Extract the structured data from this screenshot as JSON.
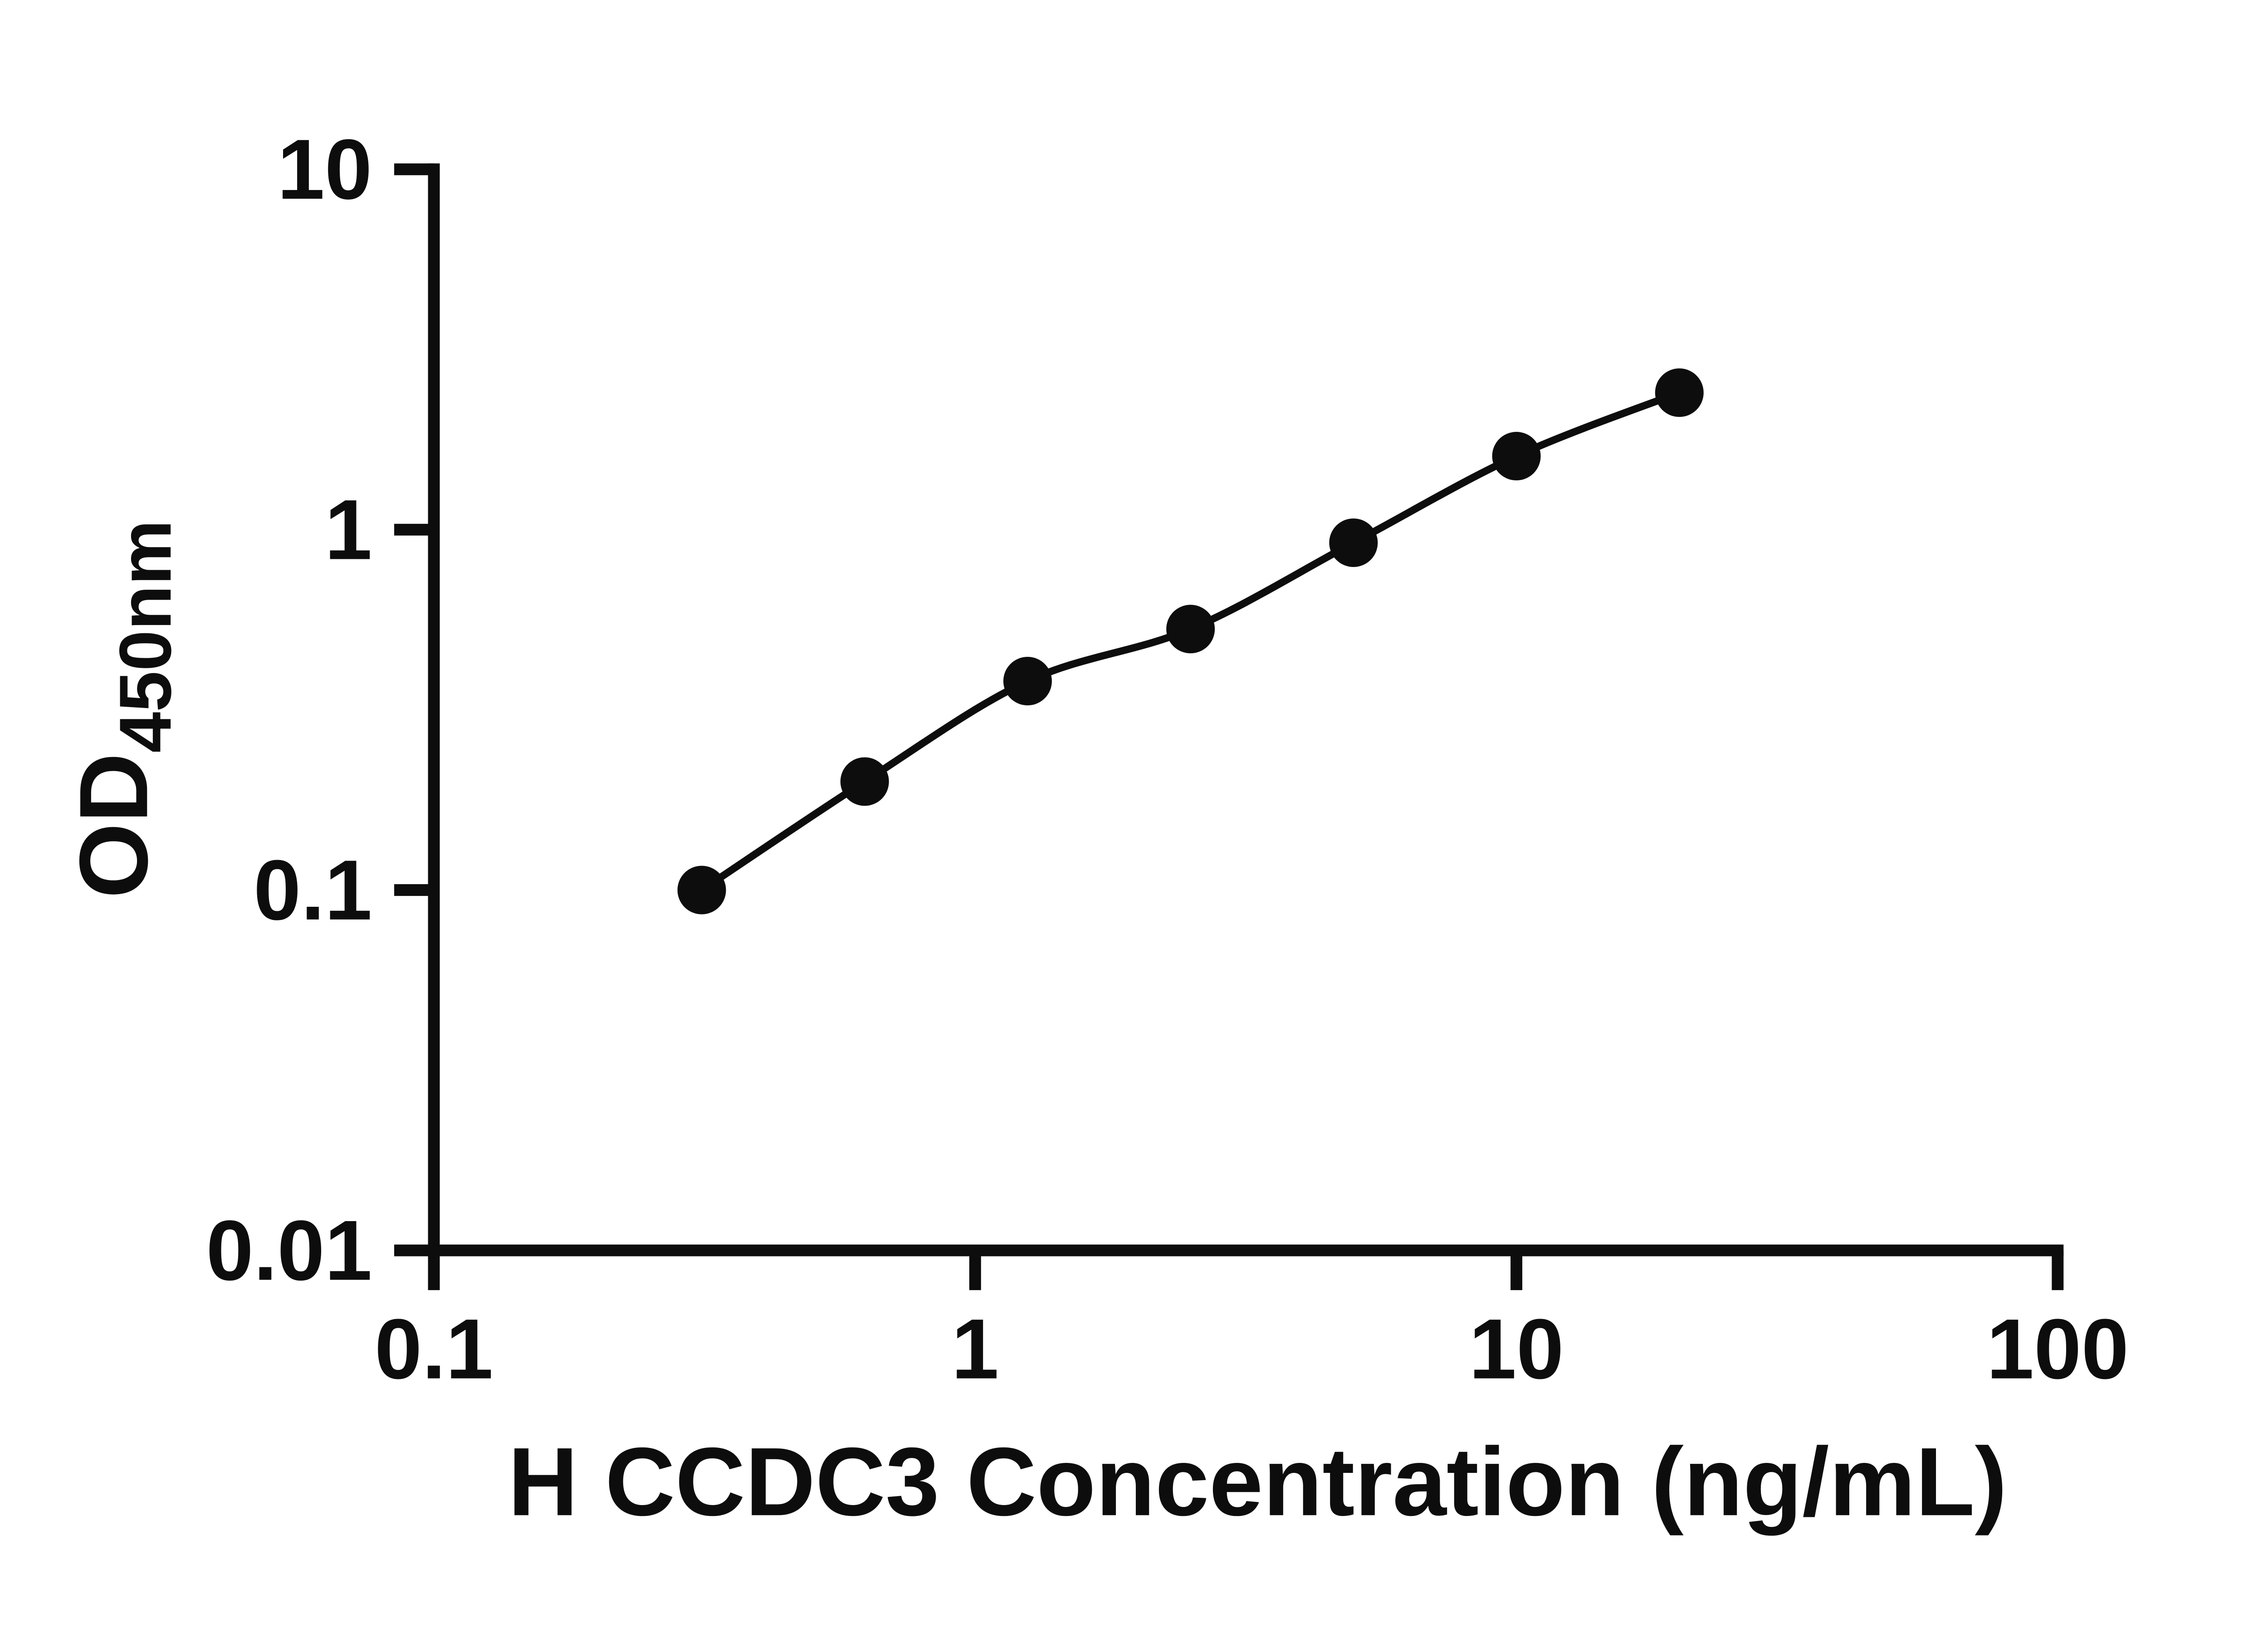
{
  "page": {
    "background": "#ffffff"
  },
  "chart_data": {
    "type": "scatter",
    "title": "",
    "xlabel": "H CCDC3 Concentration (ng/mL)",
    "ylabel_main": "OD",
    "ylabel_sub": "450nm",
    "x_scale": "log",
    "y_scale": "log",
    "xlim": [
      0.1,
      100
    ],
    "ylim": [
      0.01,
      10
    ],
    "x_ticks": [
      0.1,
      1,
      10,
      100
    ],
    "x_tick_labels": [
      "0.1",
      "1",
      "10",
      "100"
    ],
    "y_ticks": [
      0.01,
      0.1,
      1,
      10
    ],
    "y_tick_labels": [
      "0.01",
      "0.1",
      "1",
      "10"
    ],
    "grid": false,
    "legend": null,
    "line_through_points": true,
    "points": [
      {
        "x": 0.3125,
        "y": 0.1
      },
      {
        "x": 0.625,
        "y": 0.2
      },
      {
        "x": 1.25,
        "y": 0.38
      },
      {
        "x": 2.5,
        "y": 0.53
      },
      {
        "x": 5,
        "y": 0.92
      },
      {
        "x": 10,
        "y": 1.6
      },
      {
        "x": 20,
        "y": 2.4
      }
    ],
    "colors": {
      "axis": "#0d0d0d",
      "marker": "#0d0d0d",
      "line": "#0d0d0d"
    }
  }
}
